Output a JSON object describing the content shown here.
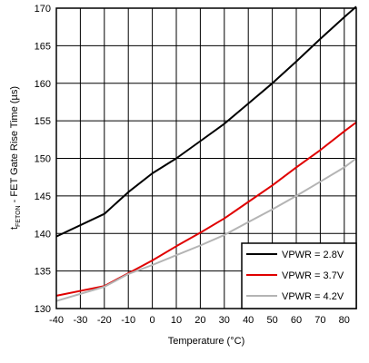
{
  "chart_data": {
    "type": "line",
    "title": "",
    "xlabel": "Temperature (°C)",
    "ylabel": {
      "main": "t",
      "subscript": "FETON",
      "rest": " - FET Gate Rise Time (µs)"
    },
    "xlim": [
      -40,
      85
    ],
    "ylim": [
      130,
      170
    ],
    "x_ticks": [
      -40,
      -30,
      -20,
      -10,
      0,
      10,
      20,
      30,
      40,
      50,
      60,
      70,
      80
    ],
    "y_ticks": [
      130,
      135,
      140,
      145,
      150,
      155,
      160,
      165,
      170
    ],
    "grid": true,
    "legend_position": "bottom-right",
    "series": [
      {
        "name": "VPWR = 2.8V",
        "color": "#000000",
        "x": [
          -40,
          -20,
          -10,
          0,
          10,
          20,
          30,
          40,
          50,
          60,
          70,
          80,
          85
        ],
        "y": [
          139.6,
          142.6,
          145.5,
          148.0,
          150.0,
          152.3,
          154.6,
          157.3,
          160.0,
          162.9,
          165.9,
          168.8,
          170.2
        ]
      },
      {
        "name": "VPWR = 3.7V",
        "color": "#e00000",
        "x": [
          -40,
          -20,
          -10,
          0,
          10,
          20,
          30,
          40,
          50,
          60,
          70,
          80,
          85
        ],
        "y": [
          131.7,
          133.0,
          134.7,
          136.4,
          138.3,
          140.1,
          142.0,
          144.2,
          146.4,
          148.8,
          151.1,
          153.6,
          154.8
        ]
      },
      {
        "name": "VPWR = 4.2V",
        "color": "#b4b4b4",
        "x": [
          -40,
          -20,
          -10,
          0,
          10,
          20,
          30,
          40,
          50,
          60,
          70,
          80,
          85
        ],
        "y": [
          131.0,
          132.9,
          134.6,
          135.8,
          137.1,
          138.4,
          139.8,
          141.5,
          143.2,
          145.0,
          146.9,
          148.8,
          150.0
        ]
      }
    ]
  }
}
